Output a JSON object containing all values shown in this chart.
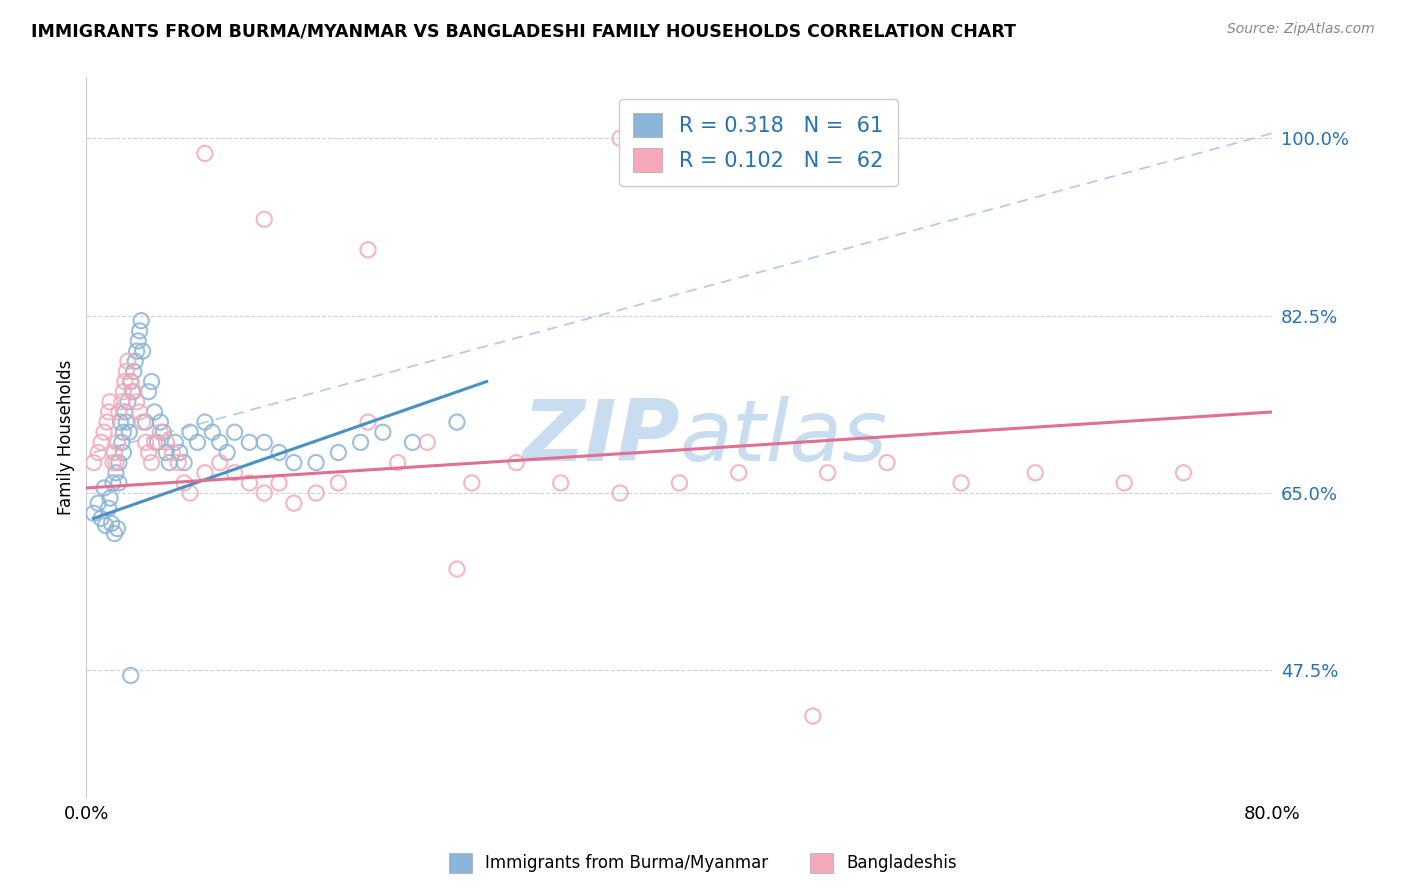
{
  "title": "IMMIGRANTS FROM BURMA/MYANMAR VS BANGLADESHI FAMILY HOUSEHOLDS CORRELATION CHART",
  "source": "Source: ZipAtlas.com",
  "ylabel": "Family Households",
  "xmin": 0.0,
  "xmax": 0.8,
  "ymin": 0.35,
  "ymax": 1.06,
  "yticks": [
    0.475,
    0.65,
    0.825,
    1.0
  ],
  "ytick_labels": [
    "47.5%",
    "65.0%",
    "82.5%",
    "100.0%"
  ],
  "xtick_vals": [
    0.0,
    0.8
  ],
  "xtick_labels": [
    "0.0%",
    "80.0%"
  ],
  "color_blue": "#8ab4d8",
  "color_pink": "#f4a8b8",
  "color_blue_line": "#4a90c4",
  "color_pink_line": "#e07090",
  "color_dashed_line": "#aac8e8",
  "watermark_color": "#c8ddf0",
  "blue_scatter_x": [
    0.005,
    0.008,
    0.01,
    0.012,
    0.013,
    0.015,
    0.016,
    0.017,
    0.018,
    0.019,
    0.02,
    0.021,
    0.022,
    0.022,
    0.023,
    0.024,
    0.025,
    0.025,
    0.026,
    0.027,
    0.028,
    0.029,
    0.03,
    0.031,
    0.032,
    0.033,
    0.034,
    0.035,
    0.036,
    0.037,
    0.038,
    0.04,
    0.042,
    0.044,
    0.046,
    0.048,
    0.05,
    0.052,
    0.054,
    0.056,
    0.06,
    0.063,
    0.066,
    0.07,
    0.075,
    0.08,
    0.085,
    0.09,
    0.095,
    0.1,
    0.11,
    0.12,
    0.13,
    0.14,
    0.155,
    0.17,
    0.185,
    0.2,
    0.22,
    0.25,
    0.03
  ],
  "blue_scatter_y": [
    0.63,
    0.64,
    0.625,
    0.655,
    0.618,
    0.635,
    0.645,
    0.62,
    0.66,
    0.61,
    0.67,
    0.615,
    0.66,
    0.68,
    0.72,
    0.7,
    0.71,
    0.69,
    0.73,
    0.72,
    0.74,
    0.71,
    0.76,
    0.75,
    0.77,
    0.78,
    0.79,
    0.8,
    0.81,
    0.82,
    0.79,
    0.72,
    0.75,
    0.76,
    0.73,
    0.7,
    0.72,
    0.71,
    0.69,
    0.68,
    0.7,
    0.69,
    0.68,
    0.71,
    0.7,
    0.72,
    0.71,
    0.7,
    0.69,
    0.71,
    0.7,
    0.7,
    0.69,
    0.68,
    0.68,
    0.69,
    0.7,
    0.71,
    0.7,
    0.72,
    0.47
  ],
  "pink_scatter_x": [
    0.005,
    0.008,
    0.01,
    0.012,
    0.014,
    0.015,
    0.016,
    0.018,
    0.019,
    0.02,
    0.021,
    0.022,
    0.024,
    0.025,
    0.026,
    0.027,
    0.028,
    0.03,
    0.032,
    0.034,
    0.036,
    0.038,
    0.04,
    0.042,
    0.044,
    0.046,
    0.05,
    0.054,
    0.058,
    0.062,
    0.066,
    0.07,
    0.08,
    0.09,
    0.1,
    0.11,
    0.12,
    0.13,
    0.14,
    0.155,
    0.17,
    0.19,
    0.21,
    0.23,
    0.26,
    0.29,
    0.32,
    0.36,
    0.4,
    0.44,
    0.5,
    0.54,
    0.59,
    0.64,
    0.7,
    0.74,
    0.19,
    0.12,
    0.36,
    0.08,
    0.25,
    0.49
  ],
  "pink_scatter_y": [
    0.68,
    0.69,
    0.7,
    0.71,
    0.72,
    0.73,
    0.74,
    0.68,
    0.69,
    0.68,
    0.7,
    0.73,
    0.74,
    0.75,
    0.76,
    0.77,
    0.78,
    0.76,
    0.75,
    0.74,
    0.73,
    0.72,
    0.7,
    0.69,
    0.68,
    0.7,
    0.71,
    0.7,
    0.69,
    0.68,
    0.66,
    0.65,
    0.67,
    0.68,
    0.67,
    0.66,
    0.65,
    0.66,
    0.64,
    0.65,
    0.66,
    0.72,
    0.68,
    0.7,
    0.66,
    0.68,
    0.66,
    0.65,
    0.66,
    0.67,
    0.67,
    0.68,
    0.66,
    0.67,
    0.66,
    0.67,
    0.89,
    0.92,
    1.0,
    0.985,
    0.575,
    0.43
  ],
  "blue_line_x": [
    0.005,
    0.27
  ],
  "blue_line_y": [
    0.625,
    0.76
  ],
  "pink_line_x": [
    0.0,
    0.8
  ],
  "pink_line_y": [
    0.655,
    0.73
  ],
  "diag_line_x": [
    0.005,
    0.8
  ],
  "diag_line_y": [
    0.69,
    1.005
  ]
}
